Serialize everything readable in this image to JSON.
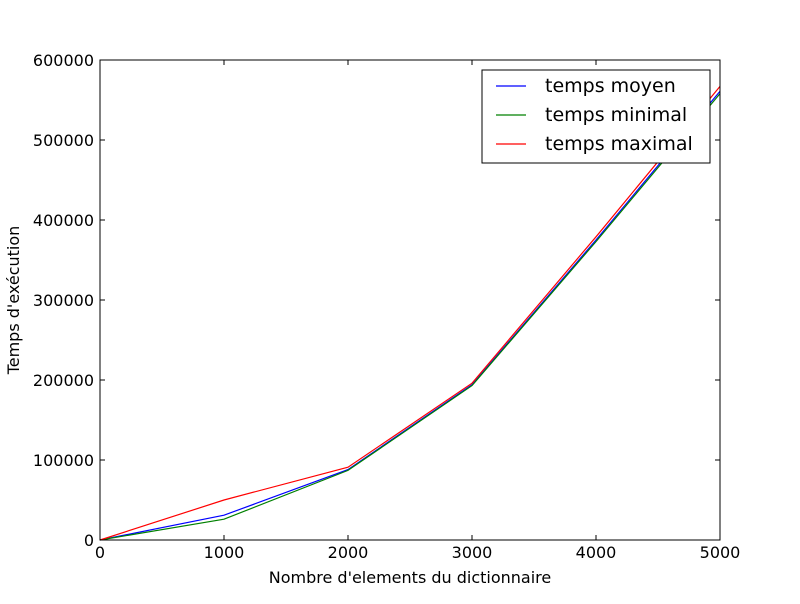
{
  "chart_data": {
    "type": "line",
    "title": "",
    "xlabel": "Nombre d'elements du dictionnaire",
    "ylabel": "Temps d'exécution",
    "xlim": [
      0,
      5000
    ],
    "ylim": [
      0,
      600000
    ],
    "xticks": [
      0,
      1000,
      2000,
      3000,
      4000,
      5000
    ],
    "yticks": [
      0,
      100000,
      200000,
      300000,
      400000,
      500000,
      600000
    ],
    "x": [
      0,
      1000,
      2000,
      3000,
      4000,
      5000
    ],
    "grid": false,
    "legend_position": "top-right",
    "series": [
      {
        "name": "temps moyen",
        "color": "#0000ff",
        "values": [
          0,
          31000,
          88000,
          194000,
          375000,
          561000
        ]
      },
      {
        "name": "temps minimal",
        "color": "#008000",
        "values": [
          0,
          26000,
          87000,
          193000,
          373000,
          558000
        ]
      },
      {
        "name": "temps maximal",
        "color": "#ff0000",
        "values": [
          0,
          50000,
          91000,
          196000,
          379000,
          567000
        ]
      }
    ]
  }
}
